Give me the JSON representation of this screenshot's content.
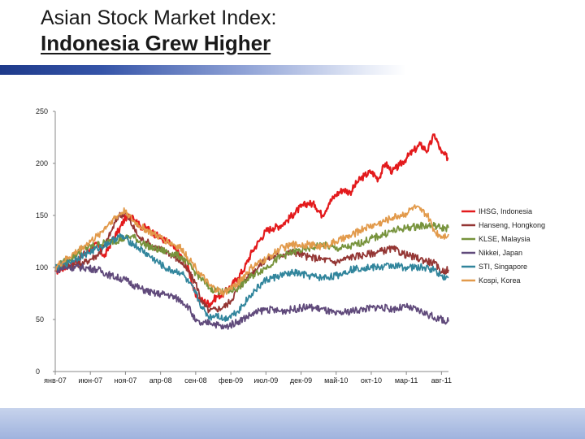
{
  "page": {
    "title_line1": "Asian Stock Market Index:",
    "title_line2": "Indonesia Grew Higher"
  },
  "chart_data": {
    "type": "line",
    "title": "",
    "xlabel": "",
    "ylabel": "",
    "ylim": [
      0,
      250
    ],
    "yticks": [
      0,
      50,
      100,
      150,
      200,
      250
    ],
    "x_range": [
      0,
      56
    ],
    "x_units": "months since янв-07",
    "x_tick_labels": [
      "янв-07",
      "июн-07",
      "ноя-07",
      "апр-08",
      "сен-08",
      "фев-09",
      "июл-09",
      "дек-09",
      "май-10",
      "окт-10",
      "мар-11",
      "авг-11"
    ],
    "x_tick_values": [
      0,
      5,
      10,
      15,
      20,
      25,
      30,
      35,
      40,
      45,
      50,
      55
    ],
    "grid": false,
    "legend_position": "right",
    "series": [
      {
        "name": "IHSG, Indonesia",
        "color": "#e31a1c",
        "x": [
          0,
          2,
          4,
          5,
          6,
          7,
          8,
          9,
          10,
          11,
          12,
          13,
          14,
          15,
          16,
          18,
          19,
          20,
          21,
          22,
          23,
          24,
          25,
          26,
          27,
          28,
          29,
          30,
          31,
          32,
          33,
          34,
          35,
          36,
          37,
          38,
          39,
          40,
          41,
          42,
          43,
          44,
          45,
          46,
          47,
          48,
          49,
          50,
          51,
          52,
          53,
          54,
          55,
          56
        ],
        "values": [
          96,
          102,
          112,
          118,
          122,
          110,
          125,
          135,
          148,
          150,
          140,
          138,
          133,
          128,
          125,
          110,
          98,
          72,
          68,
          65,
          72,
          75,
          82,
          90,
          100,
          115,
          125,
          135,
          138,
          140,
          145,
          152,
          158,
          162,
          160,
          150,
          162,
          170,
          175,
          172,
          182,
          188,
          192,
          185,
          200,
          192,
          198,
          205,
          212,
          218,
          212,
          228,
          210,
          205
        ]
      },
      {
        "name": "Hanseng, Hongkong",
        "color": "#943634",
        "x": [
          0,
          2,
          4,
          6,
          7,
          8,
          9,
          10,
          11,
          12,
          13,
          14,
          16,
          18,
          20,
          21,
          22,
          23,
          24,
          25,
          26,
          28,
          30,
          32,
          34,
          36,
          38,
          40,
          42,
          44,
          46,
          48,
          50,
          52,
          54,
          55,
          56
        ],
        "values": [
          100,
          102,
          104,
          112,
          120,
          135,
          150,
          152,
          140,
          128,
          125,
          120,
          115,
          105,
          85,
          65,
          58,
          60,
          62,
          68,
          80,
          95,
          108,
          112,
          115,
          110,
          108,
          105,
          110,
          112,
          115,
          118,
          112,
          108,
          104,
          96,
          98
        ]
      },
      {
        "name": "KLSE, Malaysia",
        "color": "#77933c",
        "x": [
          0,
          2,
          4,
          6,
          8,
          10,
          11,
          12,
          14,
          16,
          18,
          20,
          22,
          24,
          26,
          28,
          30,
          32,
          34,
          36,
          38,
          40,
          42,
          44,
          46,
          48,
          50,
          52,
          54,
          55,
          56
        ],
        "values": [
          100,
          108,
          118,
          122,
          125,
          128,
          130,
          125,
          118,
          115,
          110,
          95,
          80,
          76,
          80,
          92,
          100,
          110,
          115,
          118,
          122,
          118,
          120,
          125,
          130,
          135,
          138,
          140,
          140,
          138,
          138
        ]
      },
      {
        "name": "Nikkei, Japan",
        "color": "#604a7b",
        "x": [
          0,
          2,
          4,
          6,
          8,
          10,
          12,
          14,
          16,
          18,
          19,
          20,
          21,
          22,
          24,
          26,
          28,
          30,
          32,
          34,
          36,
          38,
          40,
          42,
          44,
          46,
          48,
          50,
          52,
          54,
          56
        ],
        "values": [
          98,
          100,
          100,
          98,
          92,
          88,
          80,
          75,
          74,
          68,
          62,
          48,
          45,
          48,
          42,
          48,
          55,
          60,
          58,
          60,
          62,
          60,
          55,
          58,
          60,
          62,
          60,
          62,
          58,
          52,
          48
        ]
      },
      {
        "name": "STI, Singapore",
        "color": "#31859c",
        "x": [
          0,
          2,
          4,
          6,
          8,
          9,
          10,
          12,
          14,
          16,
          18,
          20,
          21,
          22,
          23,
          24,
          26,
          28,
          30,
          32,
          34,
          36,
          38,
          40,
          42,
          44,
          46,
          48,
          50,
          52,
          54,
          55,
          56
        ],
        "values": [
          100,
          105,
          112,
          118,
          125,
          130,
          128,
          118,
          108,
          98,
          95,
          75,
          60,
          52,
          55,
          50,
          58,
          75,
          88,
          92,
          95,
          92,
          90,
          92,
          98,
          100,
          100,
          102,
          100,
          100,
          98,
          92,
          90
        ]
      },
      {
        "name": "Kospi, Korea",
        "color": "#e29a4b",
        "x": [
          0,
          2,
          4,
          6,
          8,
          9,
          10,
          11,
          12,
          14,
          16,
          18,
          20,
          22,
          24,
          26,
          28,
          30,
          32,
          34,
          36,
          38,
          40,
          42,
          44,
          46,
          48,
          50,
          51,
          52,
          53,
          54,
          55,
          56
        ],
        "values": [
          100,
          110,
          120,
          130,
          145,
          150,
          155,
          145,
          140,
          132,
          125,
          118,
          100,
          82,
          75,
          85,
          100,
          108,
          118,
          122,
          122,
          120,
          125,
          130,
          138,
          142,
          148,
          152,
          158,
          155,
          150,
          135,
          130,
          132
        ]
      }
    ]
  }
}
